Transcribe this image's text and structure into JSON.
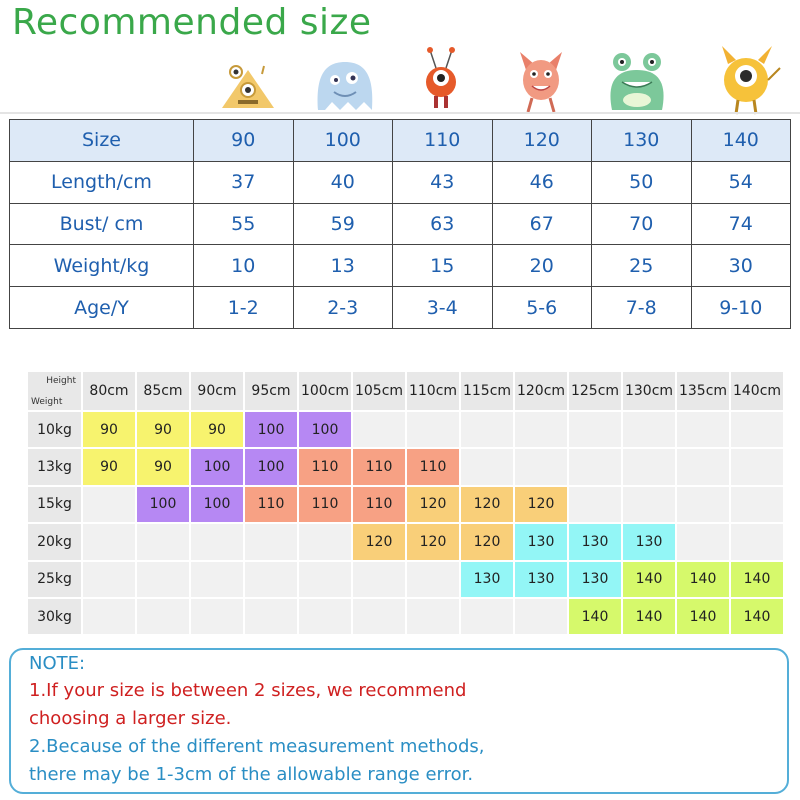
{
  "title": "Recommended size",
  "monsters": [
    "triangle-monster-icon",
    "blob-monster-icon",
    "cyclops-bug-monster-icon",
    "horned-monster-icon",
    "frog-monster-icon",
    "yellow-cyclops-monster-icon"
  ],
  "size_table": {
    "rows": [
      {
        "label": "Size",
        "values": [
          "90",
          "100",
          "110",
          "120",
          "130",
          "140"
        ]
      },
      {
        "label": "Length/cm",
        "values": [
          "37",
          "40",
          "43",
          "46",
          "50",
          "54"
        ]
      },
      {
        "label": "Bust/ cm",
        "values": [
          "55",
          "59",
          "63",
          "67",
          "70",
          "74"
        ]
      },
      {
        "label": "Weight/kg",
        "values": [
          "10",
          "13",
          "15",
          "20",
          "25",
          "30"
        ]
      },
      {
        "label": "Age/Y",
        "values": [
          "1-2",
          "2-3",
          "3-4",
          "5-6",
          "7-8",
          "9-10"
        ]
      }
    ]
  },
  "grid": {
    "corner_height": "Height",
    "corner_weight": "Weight",
    "heights": [
      "80cm",
      "85cm",
      "90cm",
      "95cm",
      "100cm",
      "105cm",
      "110cm",
      "115cm",
      "120cm",
      "125cm",
      "130cm",
      "135cm",
      "140cm"
    ],
    "weights": [
      "10kg",
      "13kg",
      "15kg",
      "20kg",
      "25kg",
      "30kg"
    ],
    "cells": [
      [
        "90",
        "90",
        "90",
        "100",
        "100",
        "",
        "",
        "",
        "",
        "",
        "",
        "",
        ""
      ],
      [
        "90",
        "90",
        "100",
        "100",
        "110",
        "110",
        "110",
        "",
        "",
        "",
        "",
        "",
        ""
      ],
      [
        "",
        "100",
        "100",
        "110",
        "110",
        "110",
        "120",
        "120",
        "120",
        "",
        "",
        "",
        ""
      ],
      [
        "",
        "",
        "",
        "",
        "",
        "120",
        "120",
        "120",
        "130",
        "130",
        "130",
        "",
        ""
      ],
      [
        "",
        "",
        "",
        "",
        "",
        "",
        "",
        "130",
        "130",
        "130",
        "140",
        "140",
        "140"
      ],
      [
        "",
        "",
        "",
        "",
        "",
        "",
        "",
        "",
        "",
        "140",
        "140",
        "140",
        "140"
      ]
    ],
    "colors": {
      "90": "yellow",
      "100": "purple",
      "110": "salmon",
      "120": "orange",
      "130": "cyan",
      "140": "lime"
    }
  },
  "note": {
    "heading": "NOTE:",
    "line1": "1.If your size is between 2 sizes, we recommend",
    "line2": "choosing a larger size.",
    "line3": "2.Because of the different measurement methods,",
    "line4": "there may be 1-3cm of the allowable range error."
  }
}
